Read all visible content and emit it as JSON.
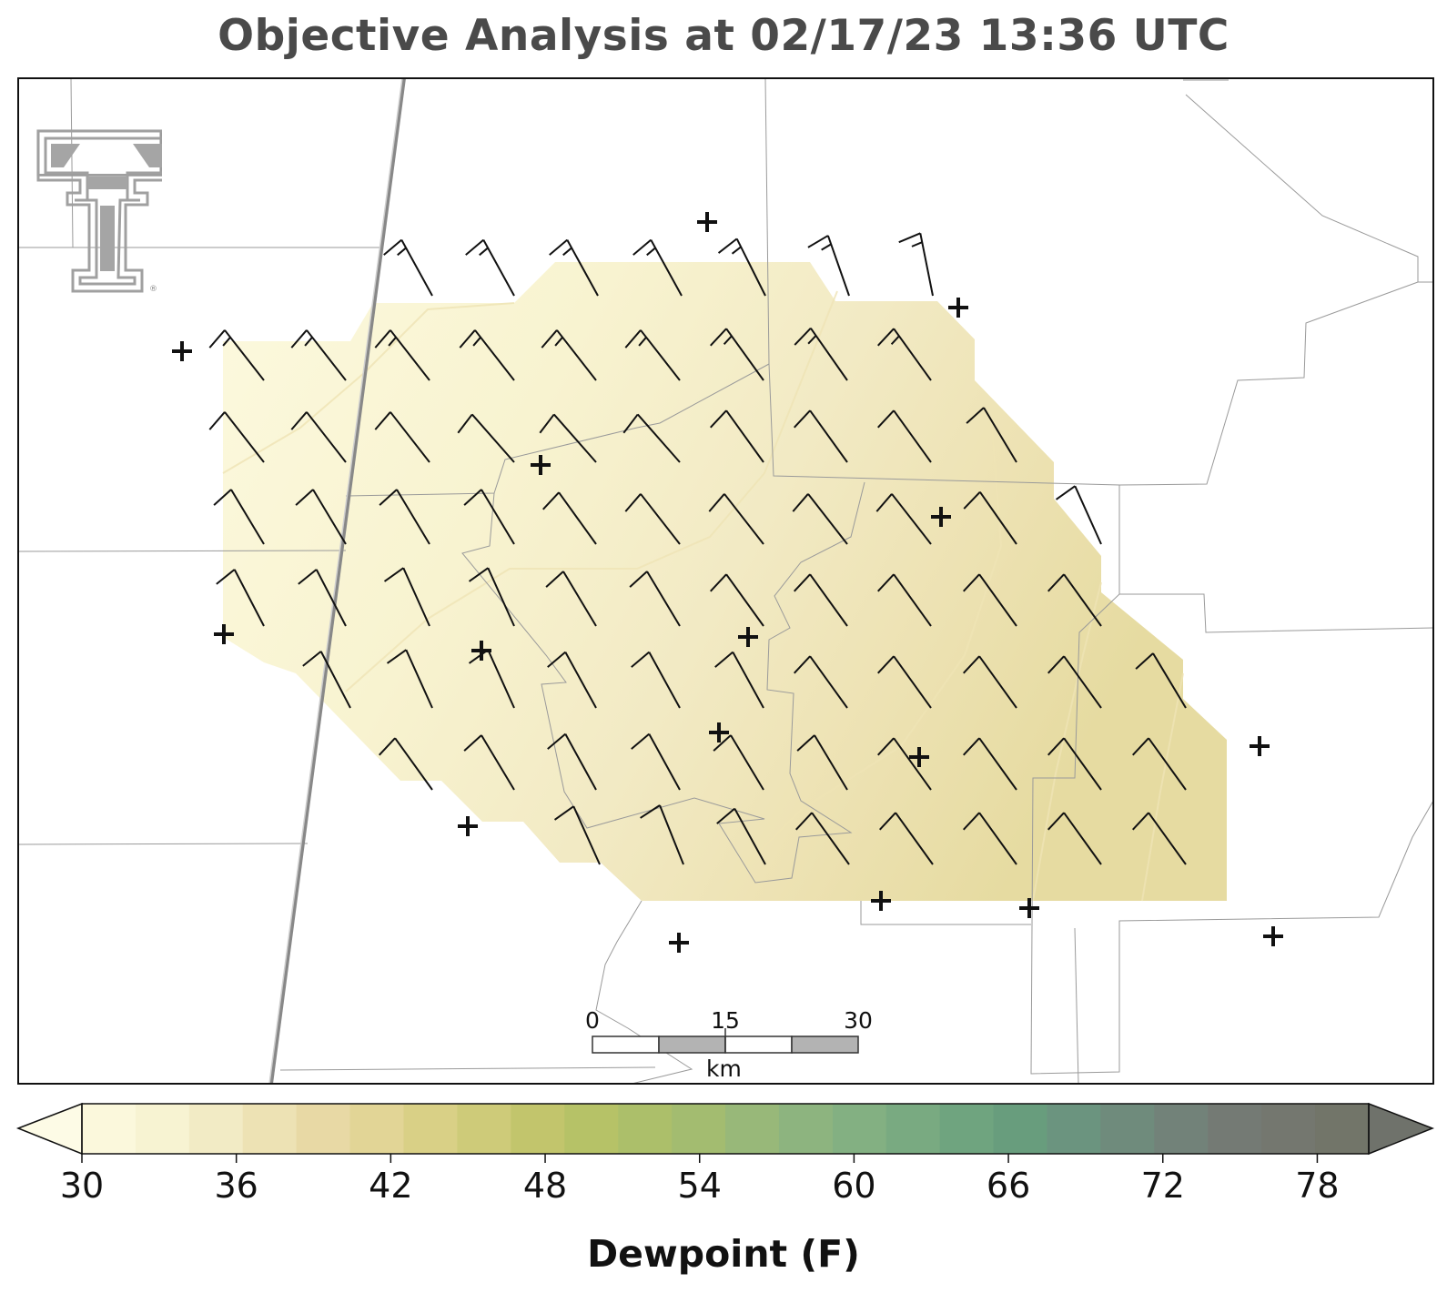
{
  "title": "Objective Analysis at 02/17/23 13:36 UTC",
  "colorbar": {
    "label": "Dewpoint (F)",
    "tick_labels": [
      "30",
      "36",
      "42",
      "48",
      "54",
      "60",
      "66",
      "72",
      "78"
    ],
    "ticks": [
      30,
      36,
      42,
      48,
      54,
      60,
      66,
      72,
      78
    ],
    "min": 30,
    "max": 80,
    "step": 2,
    "extend": "both",
    "colors": [
      "#fbf8dc",
      "#f7f3d2",
      "#f2ebc5",
      "#ede2b4",
      "#e8d9a5",
      "#e2d596",
      "#d9d086",
      "#cecb79",
      "#c2c56c",
      "#b6c267",
      "#acbf6a",
      "#a3bc70",
      "#98b879",
      "#8db47f",
      "#83b082",
      "#79aa81",
      "#6fa47f",
      "#689d7d",
      "#6b947f",
      "#6f8b7c",
      "#728279",
      "#747a74",
      "#74776f",
      "#727569"
    ],
    "under_color": "#fdfbe6",
    "over_color": "#6f726b"
  },
  "scale_bar": {
    "tick_labels": [
      "0",
      "15",
      "30"
    ],
    "unit": "km"
  },
  "logo": {
    "name": "Texas Tech double-T logo",
    "mark": "®"
  },
  "field": {
    "variable": "Dewpoint (F)",
    "range_shown": "about 31 to 38 F, increasing toward the southeast"
  },
  "wind_barbs_note": "Wind barbs mostly from the northwest, 5–15 kt",
  "station_marker": "+"
}
